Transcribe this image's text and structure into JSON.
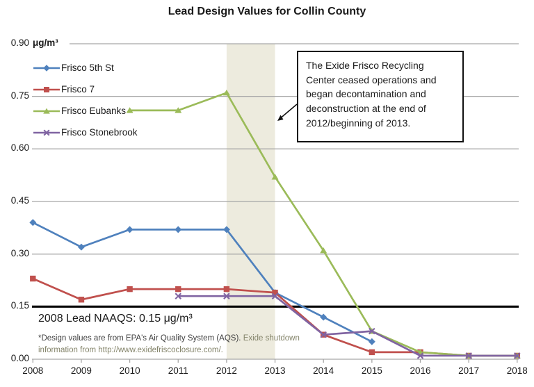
{
  "chart_data": {
    "type": "line",
    "title": "Lead Design Values for Collin County",
    "ylabel": "μg/m³",
    "xlabel": "",
    "x": [
      2008,
      2009,
      2010,
      2011,
      2012,
      2013,
      2014,
      2015,
      2016,
      2017,
      2018
    ],
    "y_ticks": [
      "0.90",
      "0.75",
      "0.60",
      "0.45",
      "0.30",
      "0.15",
      "0.00"
    ],
    "ylim": [
      0.0,
      0.9
    ],
    "grid": "horizontal",
    "gridline_color": "#A6A6A6",
    "legend_position": "top-left-inside",
    "series": [
      {
        "name": "Frisco 5th St",
        "color": "#4F81BD",
        "marker": "diamond",
        "values": [
          0.39,
          0.32,
          0.37,
          0.37,
          0.37,
          0.19,
          0.12,
          0.05,
          null,
          null,
          null
        ]
      },
      {
        "name": "Frisco 7",
        "color": "#C0504D",
        "marker": "square",
        "values": [
          0.23,
          0.17,
          0.2,
          0.2,
          0.2,
          0.19,
          0.07,
          0.02,
          0.02,
          0.01,
          0.01
        ]
      },
      {
        "name": "Frisco Eubanks",
        "color": "#9BBB59",
        "marker": "triangle",
        "values": [
          null,
          null,
          0.71,
          0.71,
          0.76,
          0.52,
          0.31,
          0.08,
          0.02,
          0.01,
          0.01
        ]
      },
      {
        "name": "Frisco Stonebrook",
        "color": "#8064A2",
        "marker": "x",
        "values": [
          null,
          null,
          null,
          0.18,
          0.18,
          0.18,
          0.07,
          0.08,
          0.01,
          0.01,
          0.01
        ]
      }
    ],
    "shaded_band": {
      "from_x": 2012,
      "to_x": 2013,
      "color": "#EDEBDE"
    },
    "reference_line": {
      "value": 0.15,
      "color": "#000000"
    }
  },
  "annotation": {
    "text": "The Exide Frisco Recycling Center ceased operations and began decontamination and deconstruction at the end of 2012/beginning of 2013."
  },
  "naaqs": {
    "label": "2008 Lead NAAQS: 0.15 μg/m³"
  },
  "footnote": {
    "part1": "*Design values are from EPA's Air Quality System (AQS). ",
    "part2": "Exide shutdown information from http://www.exidefriscoclosure.com/.",
    "part2_color": "#84846A"
  }
}
